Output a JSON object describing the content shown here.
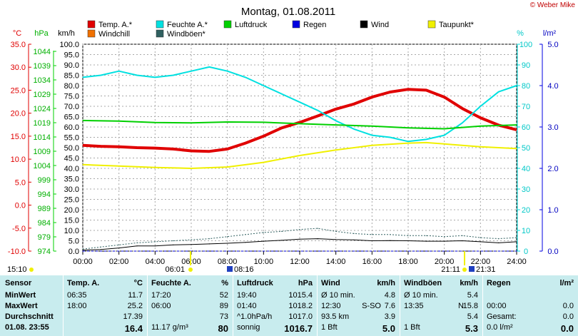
{
  "header": {
    "title": "Montag, 01.08.2011",
    "copyright": "© Weber Mike"
  },
  "axes": {
    "temp_unit": "°C",
    "pressure_unit": "hPa",
    "wind_unit": "km/h",
    "humidity_unit": "%",
    "rain_unit": "l/m²",
    "temp_ticks": [
      "35.0",
      "30.0",
      "25.0",
      "20.0",
      "15.0",
      "10.0",
      "5.0",
      "0.0",
      "-5.0",
      "-10.0"
    ],
    "pressure_ticks": [
      "1044",
      "1039",
      "1034",
      "1029",
      "1024",
      "1019",
      "1014",
      "1009",
      "1004",
      "999",
      "994",
      "989",
      "984",
      "979",
      "974"
    ],
    "wind_ticks": [
      "100.0",
      "95.0",
      "90.0",
      "85.0",
      "80.0",
      "75.0",
      "70.0",
      "65.0",
      "60.0",
      "55.0",
      "50.0",
      "45.0",
      "40.0",
      "35.0",
      "30.0",
      "25.0",
      "20.0",
      "15.0",
      "10.0",
      "5.0",
      "0.0"
    ],
    "humidity_ticks": [
      "100",
      "90",
      "80",
      "70",
      "60",
      "50",
      "40",
      "30",
      "20",
      "10",
      "0"
    ],
    "rain_ticks": [
      "5.0",
      "4.0",
      "3.0",
      "2.0",
      "1.0",
      "0.0"
    ],
    "time_ticks": [
      "00:00",
      "02:00",
      "04:00",
      "06:00",
      "08:00",
      "10:00",
      "12:00",
      "14:00",
      "16:00",
      "18:00",
      "20:00",
      "22:00",
      "24:00"
    ]
  },
  "legend": [
    {
      "label": "Temp. A.*",
      "color": "#e00000"
    },
    {
      "label": "Feuchte A.*",
      "color": "#00e0e0"
    },
    {
      "label": "Luftdruck",
      "color": "#00d000"
    },
    {
      "label": "Regen",
      "color": "#0000e0"
    },
    {
      "label": "Wind",
      "color": "#000000"
    },
    {
      "label": "Taupunkt*",
      "color": "#f0f000"
    },
    {
      "label": "Windchill",
      "color": "#f07000"
    },
    {
      "label": "Windböen*",
      "color": "#306060"
    }
  ],
  "sun_markers": {
    "left_time": "15:10",
    "sunrise": "06:01",
    "sunrise2": "08:16",
    "sunset": "21:11",
    "sunset2": "21:31"
  },
  "chart_data": {
    "type": "line",
    "title": "Montag, 01.08.2011",
    "x_unit": "hours",
    "xlim": [
      0,
      24
    ],
    "series": [
      {
        "name": "Temp. A.*",
        "color": "#e00000",
        "axis": "°C",
        "x": [
          0,
          1,
          2,
          3,
          4,
          5,
          6,
          7,
          8,
          9,
          10,
          11,
          12,
          13,
          14,
          15,
          16,
          17,
          18,
          19,
          20,
          21,
          22,
          23,
          24
        ],
        "values": [
          13.0,
          12.8,
          12.7,
          12.5,
          12.4,
          12.2,
          11.8,
          11.7,
          12.2,
          13.5,
          15.0,
          16.8,
          18.0,
          19.4,
          20.9,
          22.0,
          23.5,
          24.6,
          25.2,
          25.0,
          23.5,
          21.0,
          19.0,
          17.4,
          16.4
        ]
      },
      {
        "name": "Feuchte A.*",
        "color": "#00e0e0",
        "axis": "%",
        "x": [
          0,
          1,
          2,
          3,
          4,
          5,
          6,
          7,
          8,
          9,
          10,
          11,
          12,
          13,
          14,
          15,
          16,
          17,
          18,
          19,
          20,
          21,
          22,
          23,
          24
        ],
        "values": [
          84,
          85,
          87,
          85,
          84,
          85,
          87,
          89,
          87,
          84,
          80,
          76,
          72,
          68,
          63,
          59,
          56,
          55,
          53,
          54,
          56,
          62,
          70,
          77,
          80
        ]
      },
      {
        "name": "Luftdruck",
        "color": "#00d000",
        "axis": "hPa",
        "x": [
          0,
          2,
          4,
          6,
          8,
          10,
          12,
          14,
          16,
          18,
          20,
          22,
          24
        ],
        "values": [
          1018.2,
          1018.0,
          1017.5,
          1017.4,
          1017.7,
          1017.6,
          1017.1,
          1016.7,
          1016.3,
          1015.7,
          1015.4,
          1016.3,
          1016.7
        ]
      },
      {
        "name": "Taupunkt*",
        "color": "#f0f000",
        "axis": "°C",
        "x": [
          0,
          2,
          4,
          6,
          8,
          10,
          12,
          14,
          16,
          18,
          19,
          20,
          22,
          24
        ],
        "values": [
          8.8,
          8.5,
          8.2,
          8.0,
          8.3,
          9.3,
          10.8,
          12.0,
          13.0,
          13.5,
          13.6,
          13.3,
          12.7,
          12.3
        ]
      },
      {
        "name": "Regen",
        "color": "#0000e0",
        "axis": "l/m²",
        "x": [
          0,
          24
        ],
        "values": [
          0.0,
          0.0
        ]
      },
      {
        "name": "Wind",
        "color": "#000000",
        "axis": "km/h",
        "x": [
          0,
          1,
          2,
          3,
          4,
          5,
          6,
          7,
          8,
          9,
          10,
          11,
          12,
          13,
          14,
          15,
          16,
          17,
          18,
          19,
          20,
          21,
          22,
          23,
          24
        ],
        "values": [
          0.5,
          0.8,
          1.5,
          2.5,
          2.5,
          3.0,
          3.2,
          3.5,
          3.8,
          4.2,
          4.8,
          5.2,
          5.8,
          6.0,
          5.6,
          5.4,
          5.0,
          5.1,
          5.0,
          4.8,
          4.8,
          5.0,
          4.5,
          4.0,
          4.5
        ]
      },
      {
        "name": "Windböen*",
        "color": "#306060",
        "axis": "km/h",
        "x": [
          0,
          1,
          2,
          3,
          4,
          5,
          6,
          7,
          8,
          9,
          10,
          11,
          12,
          13,
          14,
          15,
          16,
          17,
          18,
          19,
          20,
          21,
          22,
          23,
          24
        ],
        "values": [
          1.0,
          2.0,
          3.0,
          4.0,
          4.5,
          5.0,
          5.5,
          6.0,
          7.0,
          8.0,
          9.0,
          9.5,
          10.5,
          11.0,
          9.5,
          8.5,
          8.0,
          8.0,
          7.5,
          7.5,
          7.0,
          7.5,
          6.5,
          6.0,
          6.5
        ]
      }
    ],
    "ylim_temp": [
      -10,
      35
    ],
    "ylim_pressure": [
      974,
      1044
    ],
    "ylim_wind": [
      0,
      100
    ],
    "ylim_humidity": [
      0,
      100
    ],
    "ylim_rain": [
      0,
      5
    ]
  },
  "stats": {
    "sensor": {
      "header": "Sensor",
      "rows": [
        "MinWert",
        "MaxWert",
        "Durchschnitt",
        "01.08. 23:55"
      ]
    },
    "temp": {
      "header": "Temp. A.",
      "unit": "°C",
      "rows": [
        [
          "06:35",
          "11.7"
        ],
        [
          "18:00",
          "25.2"
        ],
        [
          "",
          "17.39"
        ],
        [
          "",
          "16.4"
        ]
      ]
    },
    "humidity": {
      "header": "Feuchte A.",
      "unit": "%",
      "rows": [
        [
          "17:20",
          "52"
        ],
        [
          "06:00",
          "89"
        ],
        [
          "",
          "73"
        ],
        [
          "11.17 g/m³",
          "80"
        ]
      ]
    },
    "pressure": {
      "header": "Luftdruck",
      "unit": "hPa",
      "rows": [
        [
          "19:40",
          "1015.4"
        ],
        [
          "01:40",
          "1018.2"
        ],
        [
          "^1.0hPa/h",
          "1017.0"
        ],
        [
          "sonnig",
          "1016.7"
        ]
      ]
    },
    "wind": {
      "header": "Wind",
      "unit": "km/h",
      "rows": [
        [
          "Ø 10 min.",
          "",
          "4.8"
        ],
        [
          "12:30",
          "S-SO",
          "7.6"
        ],
        [
          "93.5 km",
          "",
          "3.9"
        ],
        [
          "1 Bft",
          "",
          "5.0"
        ]
      ]
    },
    "gusts": {
      "header": "Windböen",
      "unit": "km/h",
      "rows": [
        [
          "Ø 10 min.",
          "",
          "5.4"
        ],
        [
          "13:35",
          "N",
          "15.8"
        ],
        [
          "",
          "",
          "5.4"
        ],
        [
          "1 Bft",
          "",
          "5.3"
        ]
      ]
    },
    "rain": {
      "header": "Regen",
      "unit": "l/m²",
      "rows": [
        [
          "",
          ""
        ],
        [
          "00:00",
          "0.0"
        ],
        [
          "Gesamt:",
          "0.0"
        ],
        [
          "0.0 l/m²",
          "0.0"
        ]
      ]
    }
  }
}
